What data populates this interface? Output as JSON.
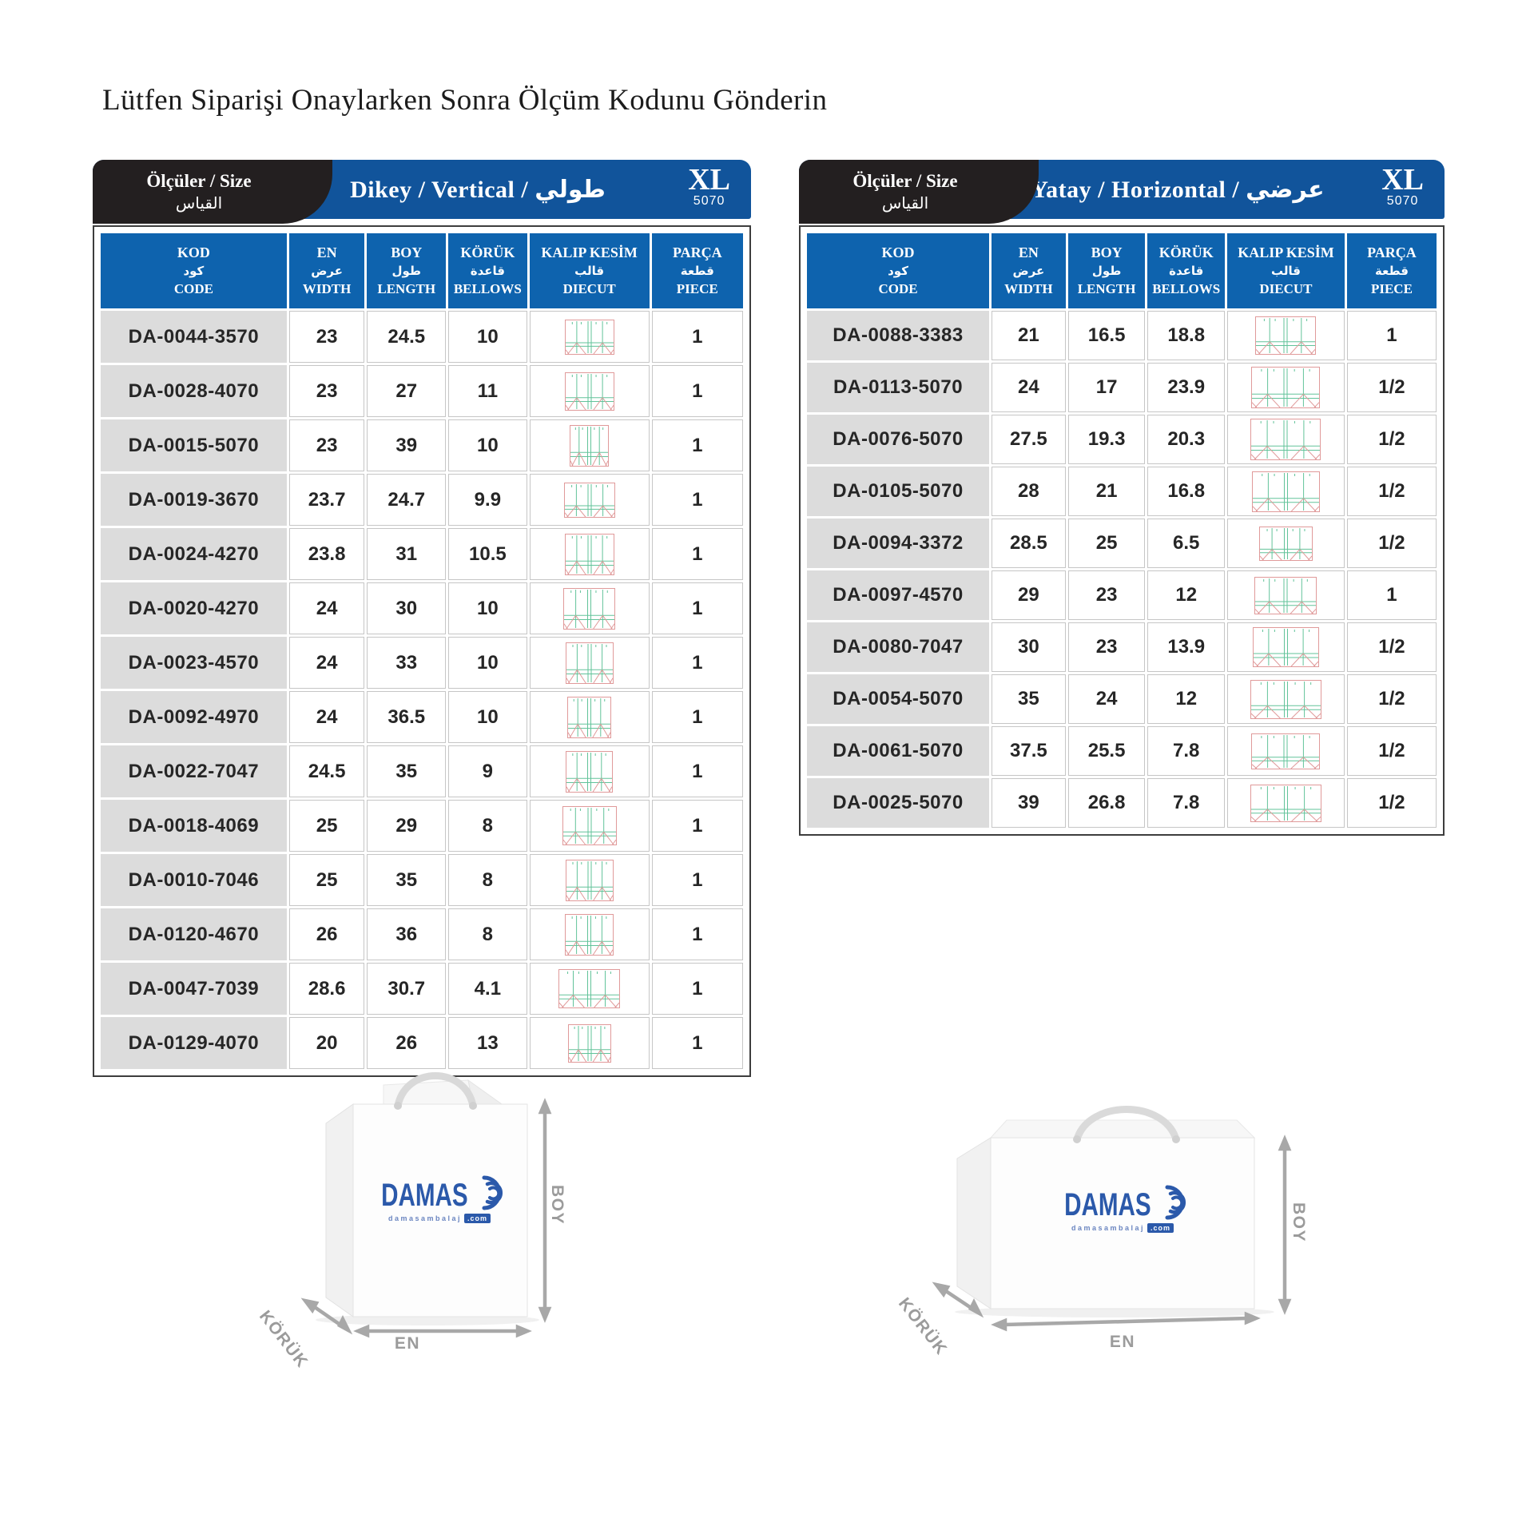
{
  "page": {
    "title": "Lütfen Siparişi Onaylarken Sonra Ölçüm Kodunu Gönderin"
  },
  "colors": {
    "accent": "#0e63ae",
    "band": "#11549b",
    "tab": "#231f20",
    "row_gray": "#dcdcdc",
    "border_gray": "#c6c6c6",
    "diecut_red": "#e09a9a",
    "diecut_green": "#62c39a",
    "arrow_gray": "#a8a8a8",
    "logo": "#2b59aa"
  },
  "tables": [
    {
      "id": "vertical",
      "tab": {
        "line1": "Ölçüler / Size",
        "line2": "القياس"
      },
      "title": "Dikey / Vertical / طولي",
      "badge": {
        "size": "XL",
        "code": "5070"
      },
      "columns": [
        {
          "tr": "KOD",
          "ar": "كود",
          "en": "CODE"
        },
        {
          "tr": "EN",
          "ar": "عرض",
          "en": "WIDTH"
        },
        {
          "tr": "BOY",
          "ar": "طول",
          "en": "LENGTH"
        },
        {
          "tr": "KÖRÜK",
          "ar": "قاعدة",
          "en": "BELLOWS"
        },
        {
          "tr": "KALIP KESİM",
          "ar": "قالب",
          "en": "DIECUT"
        },
        {
          "tr": "PARÇA",
          "ar": "قطعة",
          "en": "PIECE"
        }
      ],
      "rows": [
        {
          "code": "DA-0044-3570",
          "width": "23",
          "length": "24.5",
          "bellows": "10",
          "piece": "1"
        },
        {
          "code": "DA-0028-4070",
          "width": "23",
          "length": "27",
          "bellows": "11",
          "piece": "1"
        },
        {
          "code": "DA-0015-5070",
          "width": "23",
          "length": "39",
          "bellows": "10",
          "piece": "1"
        },
        {
          "code": "DA-0019-3670",
          "width": "23.7",
          "length": "24.7",
          "bellows": "9.9",
          "piece": "1"
        },
        {
          "code": "DA-0024-4270",
          "width": "23.8",
          "length": "31",
          "bellows": "10.5",
          "piece": "1"
        },
        {
          "code": "DA-0020-4270",
          "width": "24",
          "length": "30",
          "bellows": "10",
          "piece": "1"
        },
        {
          "code": "DA-0023-4570",
          "width": "24",
          "length": "33",
          "bellows": "10",
          "piece": "1"
        },
        {
          "code": "DA-0092-4970",
          "width": "24",
          "length": "36.5",
          "bellows": "10",
          "piece": "1"
        },
        {
          "code": "DA-0022-7047",
          "width": "24.5",
          "length": "35",
          "bellows": "9",
          "piece": "1"
        },
        {
          "code": "DA-0018-4069",
          "width": "25",
          "length": "29",
          "bellows": "8",
          "piece": "1"
        },
        {
          "code": "DA-0010-7046",
          "width": "25",
          "length": "35",
          "bellows": "8",
          "piece": "1"
        },
        {
          "code": "DA-0120-4670",
          "width": "26",
          "length": "36",
          "bellows": "8",
          "piece": "1"
        },
        {
          "code": "DA-0047-7039",
          "width": "28.6",
          "length": "30.7",
          "bellows": "4.1",
          "piece": "1"
        },
        {
          "code": "DA-0129-4070",
          "width": "20",
          "length": "26",
          "bellows": "13",
          "piece": "1"
        }
      ]
    },
    {
      "id": "horizontal",
      "tab": {
        "line1": "Ölçüler / Size",
        "line2": "القياس"
      },
      "title": "Yatay / Horizontal / عرضي",
      "badge": {
        "size": "XL",
        "code": "5070"
      },
      "columns": [
        {
          "tr": "KOD",
          "ar": "كود",
          "en": "CODE"
        },
        {
          "tr": "EN",
          "ar": "عرض",
          "en": "WIDTH"
        },
        {
          "tr": "BOY",
          "ar": "طول",
          "en": "LENGTH"
        },
        {
          "tr": "KÖRÜK",
          "ar": "قاعدة",
          "en": "BELLOWS"
        },
        {
          "tr": "KALIP KESİM",
          "ar": "قالب",
          "en": "DIECUT"
        },
        {
          "tr": "PARÇA",
          "ar": "قطعة",
          "en": "PIECE"
        }
      ],
      "rows": [
        {
          "code": "DA-0088-3383",
          "width": "21",
          "length": "16.5",
          "bellows": "18.8",
          "piece": "1"
        },
        {
          "code": "DA-0113-5070",
          "width": "24",
          "length": "17",
          "bellows": "23.9",
          "piece": "1/2"
        },
        {
          "code": "DA-0076-5070",
          "width": "27.5",
          "length": "19.3",
          "bellows": "20.3",
          "piece": "1/2"
        },
        {
          "code": "DA-0105-5070",
          "width": "28",
          "length": "21",
          "bellows": "16.8",
          "piece": "1/2"
        },
        {
          "code": "DA-0094-3372",
          "width": "28.5",
          "length": "25",
          "bellows": "6.5",
          "piece": "1/2"
        },
        {
          "code": "DA-0097-4570",
          "width": "29",
          "length": "23",
          "bellows": "12",
          "piece": "1"
        },
        {
          "code": "DA-0080-7047",
          "width": "30",
          "length": "23",
          "bellows": "13.9",
          "piece": "1/2"
        },
        {
          "code": "DA-0054-5070",
          "width": "35",
          "length": "24",
          "bellows": "12",
          "piece": "1/2"
        },
        {
          "code": "DA-0061-5070",
          "width": "37.5",
          "length": "25.5",
          "bellows": "7.8",
          "piece": "1/2"
        },
        {
          "code": "DA-0025-5070",
          "width": "39",
          "length": "26.8",
          "bellows": "7.8",
          "piece": "1/2"
        }
      ]
    }
  ],
  "bags": [
    {
      "id": "vertical-bag",
      "logo": {
        "brand": "DAMAS",
        "sub": "damasambalaj",
        "tld": ".com"
      },
      "labels": {
        "height": "BOY",
        "width": "EN",
        "gusset": "KÖRÜK"
      }
    },
    {
      "id": "horizontal-bag",
      "logo": {
        "brand": "DAMAS",
        "sub": "damasambalaj",
        "tld": ".com"
      },
      "labels": {
        "height": "BOY",
        "width": "EN",
        "gusset": "KÖRÜK"
      }
    }
  ]
}
